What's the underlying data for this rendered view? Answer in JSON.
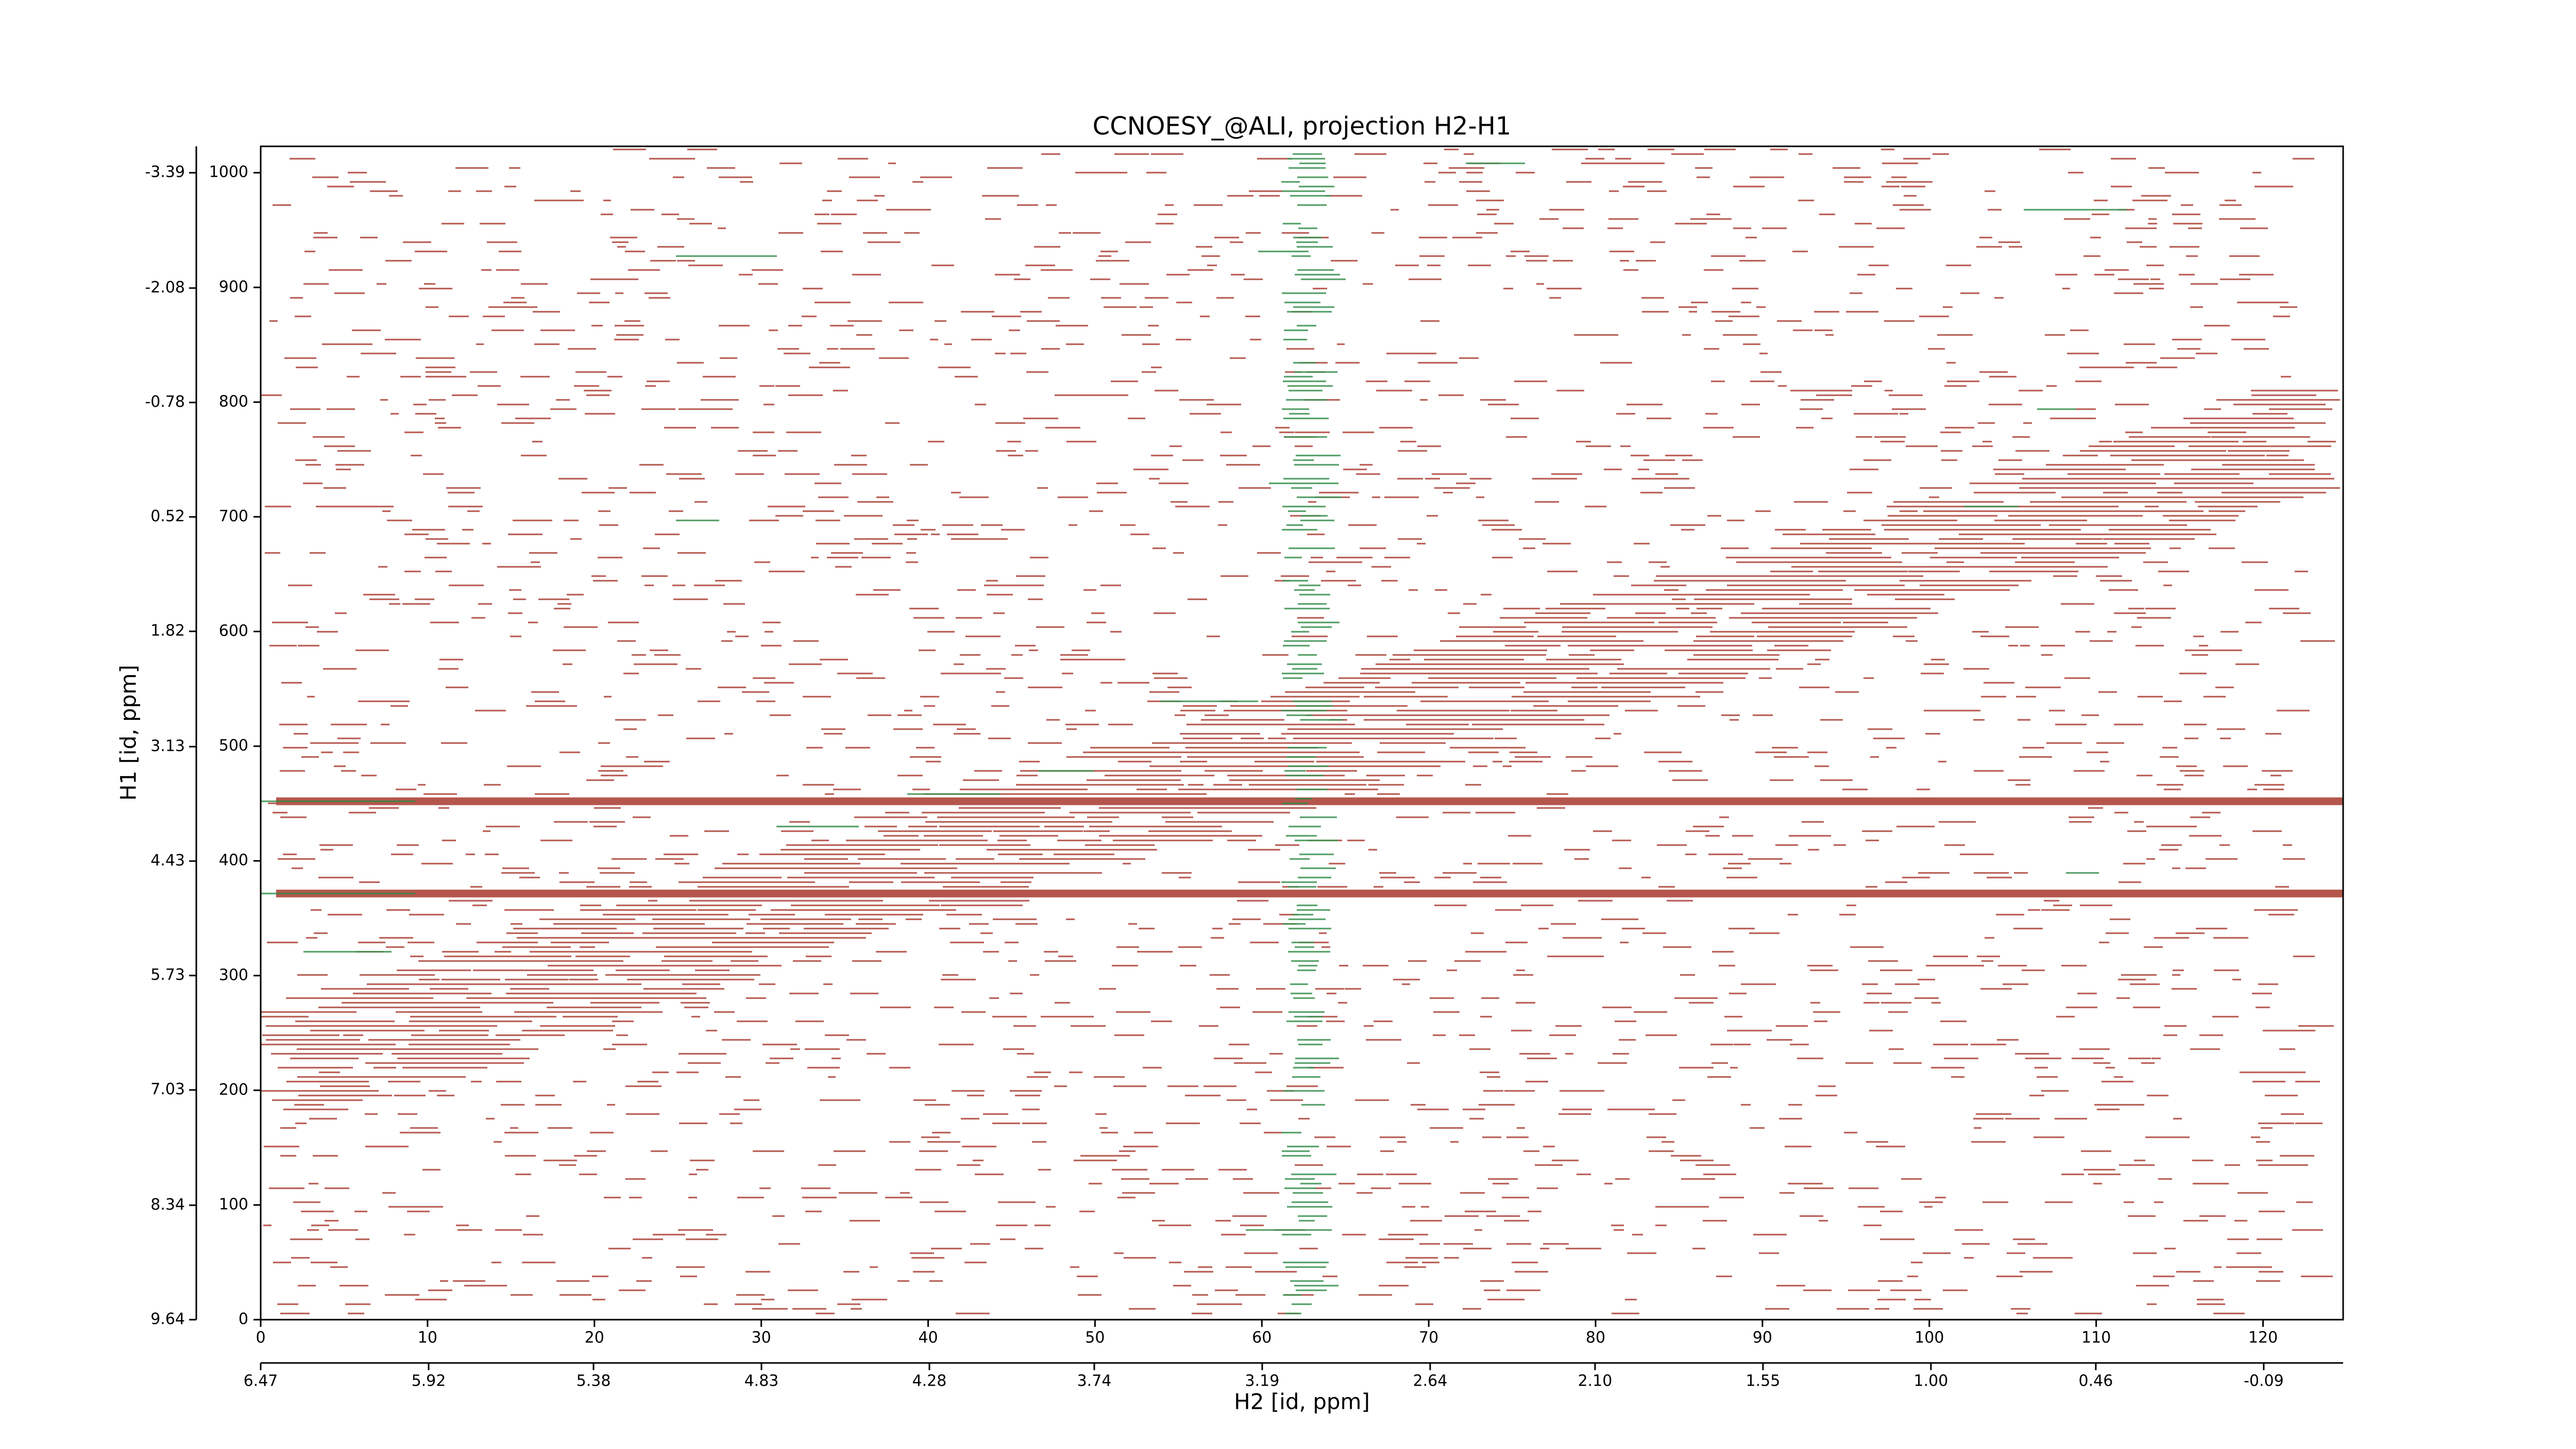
{
  "chart_data": {
    "type": "contour",
    "title": "CCNOESY_@ALI, projection H2-H1",
    "xlabel": "H2 [id, ppm]",
    "ylabel": "H1 [id, ppm]",
    "xlim": [
      0,
      124.8
    ],
    "xticks": [
      0,
      10,
      20,
      30,
      40,
      50,
      60,
      70,
      80,
      90,
      100,
      110,
      120
    ],
    "ylim": [
      0,
      1023
    ],
    "yticks": [
      0,
      100,
      200,
      300,
      400,
      500,
      600,
      700,
      800,
      900,
      1000
    ],
    "x2lim": [
      6.47,
      -0.35
    ],
    "x2ticks": [
      6.47,
      5.92,
      5.38,
      4.83,
      4.28,
      3.74,
      3.19,
      2.64,
      {
        "value": 2.1,
        "label": "2.10"
      },
      1.55,
      {
        "value": 1.0,
        "label": "1.00"
      },
      0.46,
      -0.09
    ],
    "y2lim": [
      9.64,
      -3.69
    ],
    "y2ticks": [
      9.64,
      8.34,
      7.03,
      5.73,
      4.43,
      3.13,
      1.82,
      0.52,
      -0.78,
      -2.08,
      -3.39
    ]
  }
}
